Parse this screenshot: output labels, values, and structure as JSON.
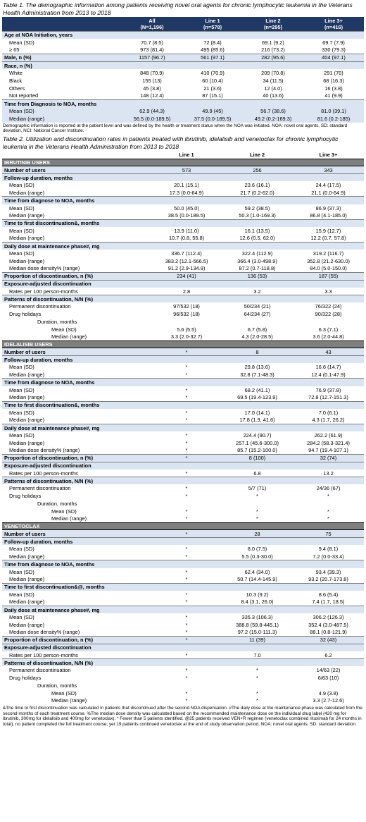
{
  "table1": {
    "caption": "Table 1. The demographic information among patients receiving novel oral agents for chronic lymphocytic leukemia in the Veterans Health Administration from 2013 to 2018",
    "header": [
      {
        "label": "All",
        "n": "(N=1,196)"
      },
      {
        "label": "Line 1",
        "n": "(n=578)"
      },
      {
        "label": "Line 2",
        "n": "(n=295)"
      },
      {
        "label": "Line 3+",
        "n": "(n=416)"
      }
    ],
    "rows": [
      {
        "type": "sec",
        "label": "Age at NOA Initiation, years",
        "values": [
          "",
          "",
          "",
          ""
        ]
      },
      {
        "type": "sub",
        "label": "Mean (SD)",
        "values": [
          "70.7 (8.5)",
          "72 (8.4)",
          "69.1 (9.2)",
          "69.7 (7.9)"
        ]
      },
      {
        "type": "sub",
        "label": "≥ 65",
        "values": [
          "973 (81.4)",
          "495 (85.6)",
          "216 (73.2)",
          "330 (79.3)"
        ]
      },
      {
        "type": "sec",
        "label": "Male, n (%)",
        "values": [
          "1157 (96.7)",
          "561 (97.1)",
          "282 (95.6)",
          "404 (97.1)"
        ]
      },
      {
        "type": "sec",
        "label": "Race, n (%)",
        "values": [
          "",
          "",
          "",
          ""
        ]
      },
      {
        "type": "sub",
        "label": "White",
        "values": [
          "848 (70.9)",
          "410 (70.9)",
          "209 (70.8)",
          "291 (70)"
        ]
      },
      {
        "type": "sub",
        "label": "Black",
        "values": [
          "155 (13)",
          "60 (10.4)",
          "34 (11.5)",
          "68 (16.3)"
        ]
      },
      {
        "type": "sub",
        "label": "Others",
        "values": [
          "45 (3.8)",
          "21 (3.6)",
          "12 (4.0)",
          "16 (3.8)"
        ]
      },
      {
        "type": "sub",
        "label": "Not reported",
        "values": [
          "148 (12.4)",
          "87 (15.1)",
          "40 (13.6)",
          "41 (9.9)"
        ]
      },
      {
        "type": "sec",
        "label": "Time from Diagnosis to NOA, months",
        "values": [
          "",
          "",
          "",
          ""
        ]
      },
      {
        "type": "subsec",
        "label": "Mean (SD)",
        "values": [
          "62.9 (44.3)",
          "49.9 (45)",
          "56.7 (38.6)",
          "81.0 (39.1)"
        ]
      },
      {
        "type": "subsec",
        "label": "Median (range)",
        "values": [
          "56.5 (0.0-189.5)",
          "37.5 (0.0-189.5)",
          "49.2 (0.2-169.3)",
          "81.6 (0.2-185)"
        ]
      }
    ],
    "note": "Demographic information is reported at the patient level and was defined by the health or treatment status when the NOA was initiated. NOA: novel oral agents, SD: standard deviation, NCI: National Cancer Institute."
  },
  "table2": {
    "caption": "Table 2. Utilization and discontinuation rates in patients treated with ibrutinib, idelalisib and venetoclax for chronic lymphocytic leukemia in the Veterans Health Administration from 2013 to 2018",
    "header": [
      "Line 1",
      "Line 2",
      "Line 3+"
    ],
    "rows": [
      {
        "type": "bar",
        "label": "IBRUTINIB USERS",
        "values": [
          "",
          "",
          ""
        ]
      },
      {
        "type": "secval",
        "label": "Number of users",
        "values": [
          "573",
          "256",
          "343"
        ]
      },
      {
        "type": "sec",
        "label": "Follow-up duration, months",
        "values": [
          "",
          "",
          ""
        ]
      },
      {
        "type": "sub",
        "label": "Mean (SD)",
        "values": [
          "20.1 (15.1)",
          "23.6 (16.1)",
          "24.4 (17.5)"
        ]
      },
      {
        "type": "sub",
        "label": "Median (range)",
        "values": [
          "17.3 (0.0-64.9)",
          "21.7 (0.2-62.0)",
          "21.1 (0.0-64.9)"
        ]
      },
      {
        "type": "sec",
        "label": "Time from diagnose to NOA, months",
        "values": [
          "",
          "",
          ""
        ]
      },
      {
        "type": "sub",
        "label": "Mean (SD)",
        "values": [
          "50.0 (45.0)",
          "59.2 (38.5)",
          "86.9 (37.3)"
        ]
      },
      {
        "type": "sub",
        "label": "Median (range)",
        "values": [
          "38.5 (0.0-189.5)",
          "50.3 (1.0-169.3)",
          "86.8 (4.1-185.0)"
        ]
      },
      {
        "type": "sec",
        "label": "Time to first discontinuation&, months",
        "values": [
          "",
          "",
          ""
        ]
      },
      {
        "type": "sub",
        "label": "Mean (SD)",
        "values": [
          "13.9 (11.0)",
          "16.1 (13.5)",
          "15.9 (12.7)"
        ]
      },
      {
        "type": "sub",
        "label": "Median (range)",
        "values": [
          "10.7 (0.8, 55.8)",
          "12.6 (0.5, 62.0)",
          "12.2 (0.7, 57.8)"
        ]
      },
      {
        "type": "sec",
        "label": "Daily dose at maintenance phase#, mg",
        "values": [
          "",
          "",
          ""
        ]
      },
      {
        "type": "sub",
        "label": "Mean (SD)",
        "values": [
          "336.7 (112.4)",
          "322.4 (112.9)",
          "319.2 (116.7)"
        ]
      },
      {
        "type": "sub",
        "label": "Median (range)",
        "values": [
          "383.2 (12.1-566.5)",
          "366.4 (3.0-498.9)",
          "352.8 (21.2-630.0)"
        ]
      },
      {
        "type": "sub",
        "label": "Median dose density% (range)",
        "values": [
          "91.2 (2.9-134.9)",
          "87.2 (0.7-118.8)",
          "84.0 (5.0-150.0)"
        ]
      },
      {
        "type": "secval",
        "label": "Proportion of discontinuation, n (%)",
        "values": [
          "234 (41)",
          "136 (53)",
          "187 (55)"
        ]
      },
      {
        "type": "sec",
        "label": "Exposure-adjusted discontinuation",
        "values": [
          "",
          "",
          ""
        ]
      },
      {
        "type": "sub",
        "label": "Rates per 100 person-months",
        "values": [
          "2.8",
          "3.2",
          "3.3"
        ]
      },
      {
        "type": "sec",
        "label": "Patterns of discontinuation, N/N (%)",
        "values": [
          "",
          "",
          ""
        ]
      },
      {
        "type": "sub",
        "label": "Permanent discontinuation",
        "values": [
          "97/532 (18)",
          "50/234 (21)",
          "76/322 (24)"
        ]
      },
      {
        "type": "sub",
        "label": "Drug holidays",
        "values": [
          "96/532 (18)",
          "64/234 (27)",
          "90/322 (28)"
        ]
      },
      {
        "type": "sub2",
        "label": "Duration, months",
        "values": [
          "",
          "",
          ""
        ]
      },
      {
        "type": "sub3",
        "label": "Mean (SD)",
        "values": [
          "5.6 (5.5)",
          "6.7 (5.8)",
          "6.3 (7.1)"
        ]
      },
      {
        "type": "sub3",
        "label": "Median (range)",
        "values": [
          "3.3 (2.0-32.7)",
          "4.3 (2.0-28.5)",
          "3.6 (2.0-44.8)"
        ]
      },
      {
        "type": "bar",
        "label": "IDELALISIB USERS",
        "values": [
          "",
          "",
          ""
        ]
      },
      {
        "type": "secval",
        "label": "Number of users",
        "values": [
          "*",
          "8",
          "43"
        ]
      },
      {
        "type": "sec",
        "label": "Follow-up duration, months",
        "values": [
          "",
          "",
          ""
        ]
      },
      {
        "type": "sub",
        "label": "Mean (SD)",
        "values": [
          "*",
          "29.8 (13.6)",
          "16.6 (14.7)"
        ]
      },
      {
        "type": "sub",
        "label": "Median (range)",
        "values": [
          "*",
          "32.8 (7.1-48.3)",
          "12.4 (0.1-47.9)"
        ]
      },
      {
        "type": "sec",
        "label": "Time from diagnose to NOA, months",
        "values": [
          "",
          "",
          ""
        ]
      },
      {
        "type": "sub",
        "label": "Mean (SD)",
        "values": [
          "*",
          "68.2 (41.1)",
          "76.9 (37.8)"
        ]
      },
      {
        "type": "sub",
        "label": "Median (range)",
        "values": [
          "*",
          "69.5 (19.4-123.9)",
          "72.8 (12.7-151.3)"
        ]
      },
      {
        "type": "sec",
        "label": "Time to first discontinuation&, months",
        "values": [
          "",
          "",
          ""
        ]
      },
      {
        "type": "sub",
        "label": "Mean (SD)",
        "values": [
          "*",
          "17.0 (14.1)",
          "7.0 (6.1)"
        ]
      },
      {
        "type": "sub",
        "label": "Median (range)",
        "values": [
          "*",
          "17.8 (1.9, 41.6)",
          "4.3 (1.7, 26.2)"
        ]
      },
      {
        "type": "sec",
        "label": "Daily dose at maintenance phase#, mg",
        "values": [
          "",
          "",
          ""
        ]
      },
      {
        "type": "sub",
        "label": "Mean (SD)",
        "values": [
          "*",
          "224.4 (90.7)",
          "262.2 (61.9)"
        ]
      },
      {
        "type": "sub",
        "label": "Median (range)",
        "values": [
          "*",
          "257.1 (45.6-300.0)",
          "284.2 (58.3-321.4)"
        ]
      },
      {
        "type": "sub",
        "label": "Median dose density% (range)",
        "values": [
          "*",
          "85.7 (15.2-100.0)",
          "94.7 (19.4-107.1)"
        ]
      },
      {
        "type": "secval",
        "label": "Proportion of discontinuation, n (%)",
        "values": [
          "*",
          "8 (100)",
          "32 (74)"
        ]
      },
      {
        "type": "sec",
        "label": "Exposure-adjusted discontinuation",
        "values": [
          "",
          "",
          ""
        ]
      },
      {
        "type": "sub",
        "label": "Rates per 100 person-months",
        "values": [
          "*",
          "6.8",
          "13.2"
        ]
      },
      {
        "type": "sec",
        "label": "Patterns of discontinuation, N/N (%)",
        "values": [
          "",
          "",
          ""
        ]
      },
      {
        "type": "sub",
        "label": "Permanent discontinuation",
        "values": [
          "*",
          "5/7 (71)",
          "24/36 (67)"
        ]
      },
      {
        "type": "sub",
        "label": "Drug holidays",
        "values": [
          "*",
          "*",
          "*"
        ]
      },
      {
        "type": "sub2",
        "label": "Duration, months",
        "values": [
          "",
          "",
          ""
        ]
      },
      {
        "type": "sub3",
        "label": "Mean (SD)",
        "values": [
          "*",
          "*",
          "*"
        ]
      },
      {
        "type": "sub3",
        "label": "Median (range)",
        "values": [
          "*",
          "*",
          "*"
        ]
      },
      {
        "type": "bar",
        "label": "VENETOCLAX",
        "values": [
          "",
          "",
          ""
        ]
      },
      {
        "type": "secval",
        "label": "Number of users",
        "values": [
          "*",
          "28",
          "75"
        ]
      },
      {
        "type": "sec",
        "label": "Follow-up duration, months",
        "values": [
          "",
          "",
          ""
        ]
      },
      {
        "type": "sub",
        "label": "Mean (SD)",
        "values": [
          "*",
          "8.0 (7.5)",
          "9.4 (8.1)"
        ]
      },
      {
        "type": "sub",
        "label": "Median (range)",
        "values": [
          "*",
          "5.5 (0.3-30.0)",
          "7.2 (0.0-33.4)"
        ]
      },
      {
        "type": "sec",
        "label": "Time from diagnose to NOA, months",
        "values": [
          "",
          "",
          ""
        ]
      },
      {
        "type": "sub",
        "label": "Mean (SD)",
        "values": [
          "*",
          "62.4 (34.0)",
          "93.4 (39.3)"
        ]
      },
      {
        "type": "sub",
        "label": "Median (range)",
        "values": [
          "*",
          "50.7 (14.4-145.9)",
          "93.2 (20.7-173.8)"
        ]
      },
      {
        "type": "sec",
        "label": "Time to first discontinuation&@, months",
        "values": [
          "",
          "",
          ""
        ]
      },
      {
        "type": "sub",
        "label": "Mean (SD)",
        "values": [
          "*",
          "10.3 (9.2)",
          "8.6 (5.4)"
        ]
      },
      {
        "type": "sub",
        "label": "Median (range)",
        "values": [
          "*",
          "8.4 (3.1, 26.0)",
          "7.4 (1.7, 18.5)"
        ]
      },
      {
        "type": "sec",
        "label": "Daily dose at maintenance phase#, mg",
        "values": [
          "",
          "",
          ""
        ]
      },
      {
        "type": "sub",
        "label": "Mean (SD)",
        "values": [
          "*",
          "335.3 (106.3)",
          "306.2 (126.3)"
        ]
      },
      {
        "type": "sub",
        "label": "Median (range)",
        "values": [
          "*",
          "388.8 (59.8-445.1)",
          "352.4 (3.0-487.5)"
        ]
      },
      {
        "type": "sub",
        "label": "Median dose density% (range)",
        "values": [
          "*",
          "97.2 (15.0-111.3)",
          "88.1 (0.8-121.9)"
        ]
      },
      {
        "type": "secval",
        "label": "Proportion of discontinuation, n (%)",
        "values": [
          "*",
          "11 (39)",
          "32 (43)"
        ]
      },
      {
        "type": "sec",
        "label": "Exposure-adjusted discontinuation",
        "values": [
          "",
          "",
          ""
        ]
      },
      {
        "type": "sub",
        "label": "Rates per 100 person-months",
        "values": [
          "*",
          "7.0",
          "6.2"
        ]
      },
      {
        "type": "sec",
        "label": "Patterns of discontinuation, N/N (%)",
        "values": [
          "",
          "",
          ""
        ]
      },
      {
        "type": "sub",
        "label": "Permanent discontinuation",
        "values": [
          "*",
          "*",
          "14/63 (22)"
        ]
      },
      {
        "type": "sub",
        "label": "Drug holidays",
        "values": [
          "*",
          "*",
          "6/63 (10)"
        ]
      },
      {
        "type": "sub2",
        "label": "Duration, months",
        "values": [
          "",
          "",
          ""
        ]
      },
      {
        "type": "sub3",
        "label": "Mean (SD)",
        "values": [
          "*",
          "*",
          "4.9 (3.8)"
        ]
      },
      {
        "type": "sub3",
        "label": "Median (range)",
        "values": [
          "*",
          "*",
          "3.3 (2.7-12.6)"
        ]
      }
    ],
    "footnotes": "&The time to first discontinuation was calculated in patients that discontinued after the second NOA dispensation. #The daily dose at the maintenance phase was calculated from the second months of each treatment course. %The median dose density was calculated based on the recommended maintenance dose on the individual drug label (420 mg for ibrutinib, 300mg for idelalisib and 400mg for venetoclax). * Fewer than 5 patients identified. @25 patients received VEN+R regimen (venetoclax combined rituximab for 24 months in total), no patient completed the full treatment course; yet 19 patients continued venetoclax at the end of study observation period. NOA: novel oral agents, SD: standard deviation."
  }
}
